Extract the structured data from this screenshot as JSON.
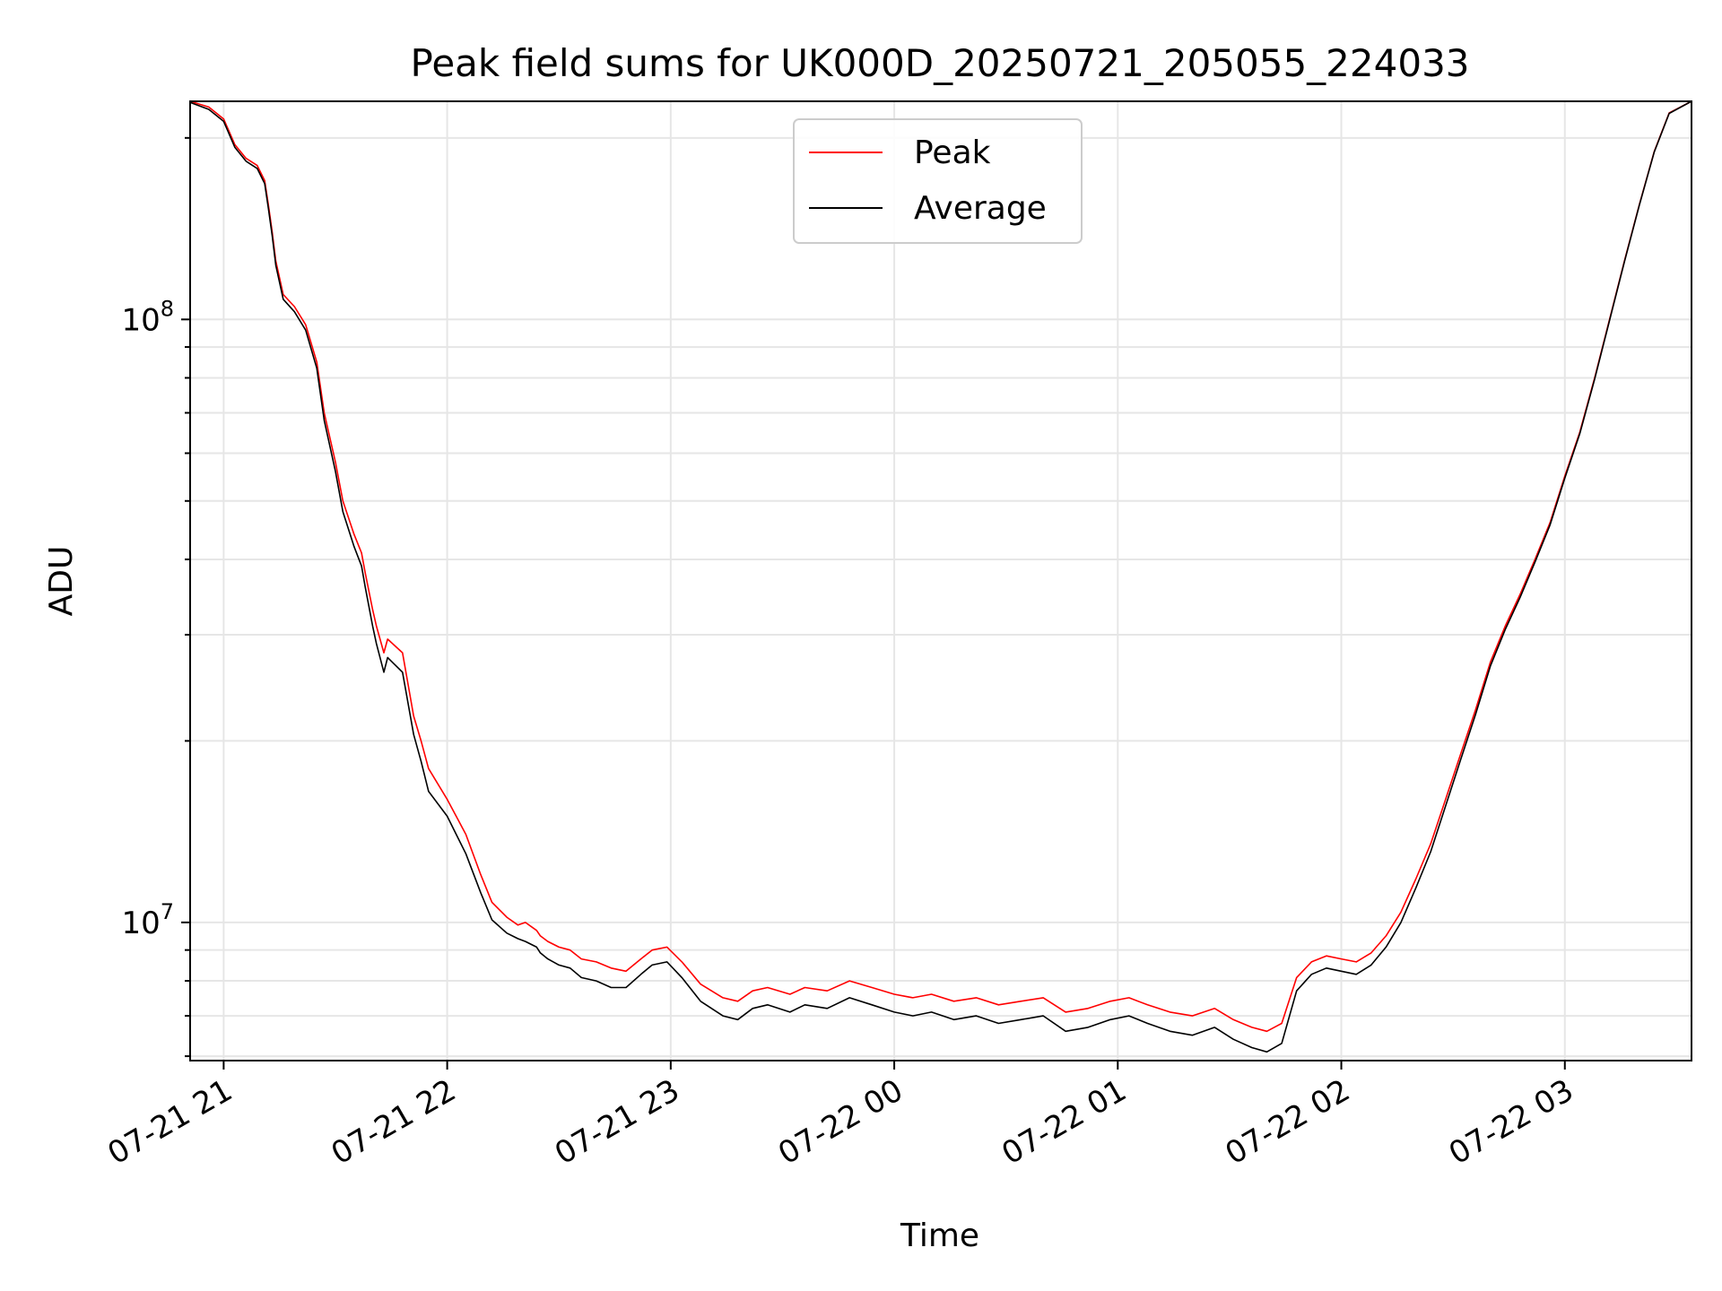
{
  "chart_data": {
    "type": "line",
    "title": "Peak field sums for UK000D_20250721_205055_224033",
    "xlabel": "Time",
    "ylabel": "ADU",
    "yscale": "log",
    "xlim": [
      "2025-07-21 20:51",
      "2025-07-22 03:34"
    ],
    "ylim": [
      5900000,
      230000000
    ],
    "grid": true,
    "legend_position": "top-center",
    "x_ticks": [
      {
        "x": "2025-07-21 21:00",
        "label": "07-21 21"
      },
      {
        "x": "2025-07-21 22:00",
        "label": "07-21 22"
      },
      {
        "x": "2025-07-21 23:00",
        "label": "07-21 23"
      },
      {
        "x": "2025-07-22 00:00",
        "label": "07-22 00"
      },
      {
        "x": "2025-07-22 01:00",
        "label": "07-22 01"
      },
      {
        "x": "2025-07-22 02:00",
        "label": "07-22 02"
      },
      {
        "x": "2025-07-22 03:00",
        "label": "07-22 03"
      }
    ],
    "y_major_ticks": [
      {
        "y": 10000000,
        "base": "10",
        "exponent": "7"
      },
      {
        "y": 100000000,
        "base": "10",
        "exponent": "8"
      }
    ],
    "series": [
      {
        "name": "Peak",
        "color": "#ff0000",
        "x": [
          "2025-07-21 20:51",
          "2025-07-21 20:56",
          "2025-07-21 21:00",
          "2025-07-21 21:03",
          "2025-07-21 21:06",
          "2025-07-21 21:09",
          "2025-07-21 21:11",
          "2025-07-21 21:12",
          "2025-07-21 21:13",
          "2025-07-21 21:14",
          "2025-07-21 21:16",
          "2025-07-21 21:19",
          "2025-07-21 21:22",
          "2025-07-21 21:25",
          "2025-07-21 21:27",
          "2025-07-21 21:30",
          "2025-07-21 21:32",
          "2025-07-21 21:35",
          "2025-07-21 21:37",
          "2025-07-21 21:38",
          "2025-07-21 21:40",
          "2025-07-21 21:41",
          "2025-07-21 21:43",
          "2025-07-21 21:44",
          "2025-07-21 21:48",
          "2025-07-21 21:51",
          "2025-07-21 21:53",
          "2025-07-21 21:55",
          "2025-07-21 22:00",
          "2025-07-21 22:05",
          "2025-07-21 22:09",
          "2025-07-21 22:12",
          "2025-07-21 22:16",
          "2025-07-21 22:19",
          "2025-07-21 22:21",
          "2025-07-21 22:24",
          "2025-07-21 22:25",
          "2025-07-21 22:27",
          "2025-07-21 22:30",
          "2025-07-21 22:33",
          "2025-07-21 22:36",
          "2025-07-21 22:40",
          "2025-07-21 22:44",
          "2025-07-21 22:48",
          "2025-07-21 22:52",
          "2025-07-21 22:55",
          "2025-07-21 22:59",
          "2025-07-21 23:03",
          "2025-07-21 23:08",
          "2025-07-21 23:14",
          "2025-07-21 23:18",
          "2025-07-21 23:22",
          "2025-07-21 23:26",
          "2025-07-21 23:32",
          "2025-07-21 23:36",
          "2025-07-21 23:42",
          "2025-07-21 23:48",
          "2025-07-21 23:54",
          "2025-07-22 00:00",
          "2025-07-22 00:05",
          "2025-07-22 00:10",
          "2025-07-22 00:16",
          "2025-07-22 00:22",
          "2025-07-22 00:28",
          "2025-07-22 00:34",
          "2025-07-22 00:40",
          "2025-07-22 00:46",
          "2025-07-22 00:52",
          "2025-07-22 00:58",
          "2025-07-22 01:03",
          "2025-07-22 01:08",
          "2025-07-22 01:14",
          "2025-07-22 01:20",
          "2025-07-22 01:26",
          "2025-07-22 01:31",
          "2025-07-22 01:36",
          "2025-07-22 01:40",
          "2025-07-22 01:44",
          "2025-07-22 01:48",
          "2025-07-22 01:52",
          "2025-07-22 01:56",
          "2025-07-22 02:00",
          "2025-07-22 02:04",
          "2025-07-22 02:08",
          "2025-07-22 02:12",
          "2025-07-22 02:16",
          "2025-07-22 02:20",
          "2025-07-22 02:24",
          "2025-07-22 02:28",
          "2025-07-22 02:32",
          "2025-07-22 02:36",
          "2025-07-22 02:40",
          "2025-07-22 02:44",
          "2025-07-22 02:48",
          "2025-07-22 02:52",
          "2025-07-22 02:56",
          "2025-07-22 03:00",
          "2025-07-22 03:04",
          "2025-07-22 03:08",
          "2025-07-22 03:12",
          "2025-07-22 03:16",
          "2025-07-22 03:20",
          "2025-07-22 03:24",
          "2025-07-22 03:28",
          "2025-07-22 03:34"
        ],
        "y": [
          230000000,
          225000000,
          215000000,
          195000000,
          185000000,
          180000000,
          170000000,
          155000000,
          140000000,
          125000000,
          110000000,
          105000000,
          98000000,
          85000000,
          70000000,
          58000000,
          50000000,
          44000000,
          41000000,
          38000000,
          33000000,
          31000000,
          28000000,
          29500000,
          28000000,
          22000000,
          20000000,
          18000000,
          16000000,
          14000000,
          12000000,
          10800000,
          10200000,
          9900000,
          10000000,
          9700000,
          9500000,
          9300000,
          9100000,
          9000000,
          8700000,
          8600000,
          8400000,
          8300000,
          8700000,
          9000000,
          9100000,
          8600000,
          7900000,
          7500000,
          7400000,
          7700000,
          7800000,
          7600000,
          7800000,
          7700000,
          8000000,
          7800000,
          7600000,
          7500000,
          7600000,
          7400000,
          7500000,
          7300000,
          7400000,
          7500000,
          7100000,
          7200000,
          7400000,
          7500000,
          7300000,
          7100000,
          7000000,
          7200000,
          6900000,
          6700000,
          6600000,
          6800000,
          8100000,
          8600000,
          8800000,
          8700000,
          8600000,
          8900000,
          9500000,
          10400000,
          11800000,
          13500000,
          16000000,
          19000000,
          22500000,
          27000000,
          31000000,
          35000000,
          40000000,
          46000000,
          55000000,
          65000000,
          80000000,
          100000000,
          125000000,
          155000000,
          190000000,
          220000000,
          230000000
        ]
      },
      {
        "name": "Average",
        "color": "#000000",
        "x": [
          "2025-07-21 20:51",
          "2025-07-21 20:56",
          "2025-07-21 21:00",
          "2025-07-21 21:03",
          "2025-07-21 21:06",
          "2025-07-21 21:09",
          "2025-07-21 21:11",
          "2025-07-21 21:12",
          "2025-07-21 21:13",
          "2025-07-21 21:14",
          "2025-07-21 21:16",
          "2025-07-21 21:19",
          "2025-07-21 21:22",
          "2025-07-21 21:25",
          "2025-07-21 21:27",
          "2025-07-21 21:30",
          "2025-07-21 21:32",
          "2025-07-21 21:35",
          "2025-07-21 21:37",
          "2025-07-21 21:38",
          "2025-07-21 21:40",
          "2025-07-21 21:41",
          "2025-07-21 21:43",
          "2025-07-21 21:44",
          "2025-07-21 21:48",
          "2025-07-21 21:51",
          "2025-07-21 21:53",
          "2025-07-21 21:55",
          "2025-07-21 22:00",
          "2025-07-21 22:05",
          "2025-07-21 22:09",
          "2025-07-21 22:12",
          "2025-07-21 22:16",
          "2025-07-21 22:19",
          "2025-07-21 22:21",
          "2025-07-21 22:24",
          "2025-07-21 22:25",
          "2025-07-21 22:27",
          "2025-07-21 22:30",
          "2025-07-21 22:33",
          "2025-07-21 22:36",
          "2025-07-21 22:40",
          "2025-07-21 22:44",
          "2025-07-21 22:48",
          "2025-07-21 22:52",
          "2025-07-21 22:55",
          "2025-07-21 22:59",
          "2025-07-21 23:03",
          "2025-07-21 23:08",
          "2025-07-21 23:14",
          "2025-07-21 23:18",
          "2025-07-21 23:22",
          "2025-07-21 23:26",
          "2025-07-21 23:32",
          "2025-07-21 23:36",
          "2025-07-21 23:42",
          "2025-07-21 23:48",
          "2025-07-21 23:54",
          "2025-07-22 00:00",
          "2025-07-22 00:05",
          "2025-07-22 00:10",
          "2025-07-22 00:16",
          "2025-07-22 00:22",
          "2025-07-22 00:28",
          "2025-07-22 00:34",
          "2025-07-22 00:40",
          "2025-07-22 00:46",
          "2025-07-22 00:52",
          "2025-07-22 00:58",
          "2025-07-22 01:03",
          "2025-07-22 01:08",
          "2025-07-22 01:14",
          "2025-07-22 01:20",
          "2025-07-22 01:26",
          "2025-07-22 01:31",
          "2025-07-22 01:36",
          "2025-07-22 01:40",
          "2025-07-22 01:44",
          "2025-07-22 01:48",
          "2025-07-22 01:52",
          "2025-07-22 01:56",
          "2025-07-22 02:00",
          "2025-07-22 02:04",
          "2025-07-22 02:08",
          "2025-07-22 02:12",
          "2025-07-22 02:16",
          "2025-07-22 02:20",
          "2025-07-22 02:24",
          "2025-07-22 02:28",
          "2025-07-22 02:32",
          "2025-07-22 02:36",
          "2025-07-22 02:40",
          "2025-07-22 02:44",
          "2025-07-22 02:48",
          "2025-07-22 02:52",
          "2025-07-22 02:56",
          "2025-07-22 03:00",
          "2025-07-22 03:04",
          "2025-07-22 03:08",
          "2025-07-22 03:12",
          "2025-07-22 03:16",
          "2025-07-22 03:20",
          "2025-07-22 03:24",
          "2025-07-22 03:28",
          "2025-07-22 03:34"
        ],
        "y": [
          229000000,
          223000000,
          213000000,
          193000000,
          183000000,
          178000000,
          168000000,
          153000000,
          138000000,
          123000000,
          108000000,
          103000000,
          96000000,
          83000000,
          68000000,
          56000000,
          48000000,
          42000000,
          39000000,
          36000000,
          31000000,
          29000000,
          26000000,
          27500000,
          26000000,
          20500000,
          18500000,
          16500000,
          15000000,
          13000000,
          11200000,
          10100000,
          9600000,
          9400000,
          9300000,
          9100000,
          8900000,
          8700000,
          8500000,
          8400000,
          8100000,
          8000000,
          7800000,
          7800000,
          8200000,
          8500000,
          8600000,
          8100000,
          7400000,
          7000000,
          6900000,
          7200000,
          7300000,
          7100000,
          7300000,
          7200000,
          7500000,
          7300000,
          7100000,
          7000000,
          7100000,
          6900000,
          7000000,
          6800000,
          6900000,
          7000000,
          6600000,
          6700000,
          6900000,
          7000000,
          6800000,
          6600000,
          6500000,
          6700000,
          6400000,
          6200000,
          6100000,
          6300000,
          7700000,
          8200000,
          8400000,
          8300000,
          8200000,
          8500000,
          9100000,
          10000000,
          11400000,
          13100000,
          15600000,
          18600000,
          22100000,
          26600000,
          30600000,
          34600000,
          39600000,
          45600000,
          54600000,
          64600000,
          79600000,
          99600000,
          124600000,
          154600000,
          189600000,
          219600000,
          230000000
        ]
      }
    ],
    "legend": [
      {
        "label": "Peak",
        "color": "#ff0000"
      },
      {
        "label": "Average",
        "color": "#000000"
      }
    ]
  }
}
